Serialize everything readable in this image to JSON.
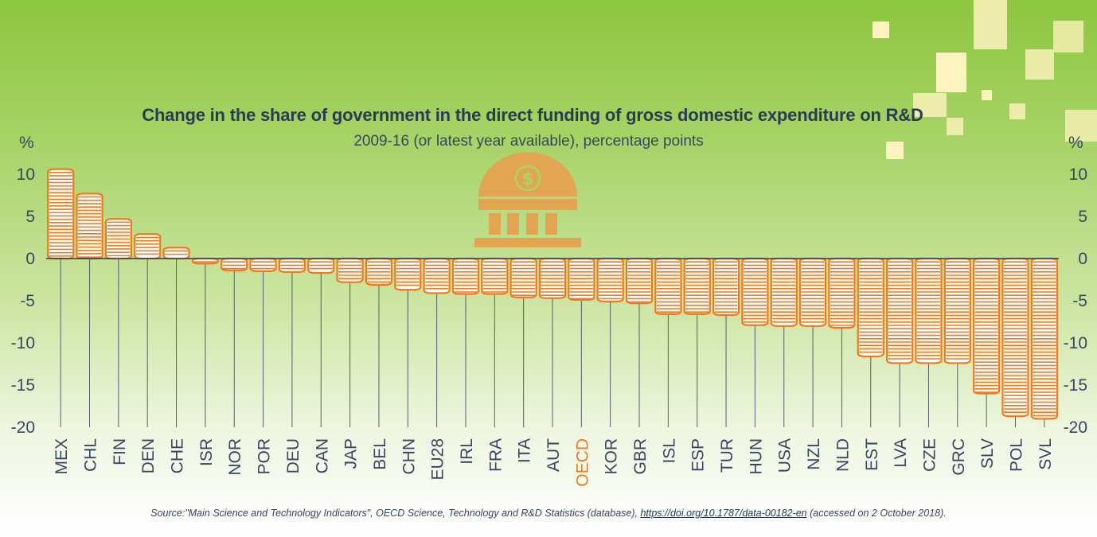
{
  "chart_data": {
    "type": "bar",
    "title": "Change in the share of government in the direct funding of gross domestic expenditure on R&D",
    "subtitle": "2009-16 (or latest year available), percentage points",
    "ylabel": "%",
    "ylim": [
      -20,
      10
    ],
    "yticks": [
      10,
      5,
      0,
      -5,
      -10,
      -15,
      -20
    ],
    "highlight": "OECD",
    "categories": [
      "MEX",
      "CHL",
      "FIN",
      "DEN",
      "CHE",
      "ISR",
      "NOR",
      "POR",
      "DEU",
      "CAN",
      "JAP",
      "BEL",
      "CHN",
      "EU28",
      "IRL",
      "FRA",
      "ITA",
      "AUT",
      "OECD",
      "KOR",
      "GBR",
      "ISL",
      "ESP",
      "TUR",
      "HUN",
      "USA",
      "NZL",
      "NLD",
      "EST",
      "LVA",
      "CZE",
      "GRC",
      "SLV",
      "POL",
      "SVL"
    ],
    "values": [
      10.6,
      7.7,
      4.7,
      2.9,
      1.3,
      -0.6,
      -1.4,
      -1.5,
      -1.6,
      -1.7,
      -2.8,
      -3.1,
      -3.7,
      -4.1,
      -4.2,
      -4.2,
      -4.6,
      -4.7,
      -4.9,
      -5.1,
      -5.3,
      -6.6,
      -6.6,
      -6.7,
      -7.9,
      -8.0,
      -8.0,
      -8.2,
      -11.6,
      -12.4,
      -12.4,
      -12.4,
      -16.0,
      -18.7,
      -19.0
    ],
    "bar_color": "#f07a1a",
    "text_color": "#3a4660",
    "title_color": "#2b3a55",
    "grid": false,
    "legend": "none"
  },
  "source": {
    "prefix": "Source:\"Main Science and Technology Indicators\", OECD Science, Technology and R&D Statistics (database), ",
    "link_text": "https://doi.org/10.1787/data-00182-en",
    "suffix": " (accessed on 2 October 2018)."
  },
  "icons": {
    "bank": "bank-dollar-icon"
  }
}
